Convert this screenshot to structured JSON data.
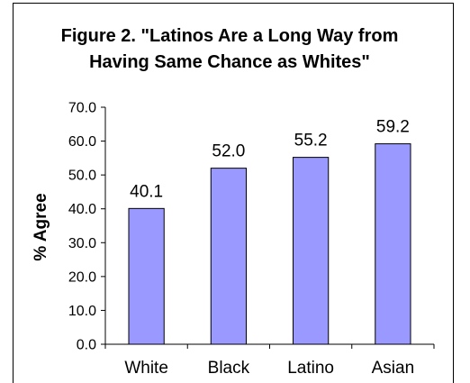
{
  "chart_data": {
    "type": "bar",
    "title": "Figure 2. \"Latinos Are a Long Way from Having Same Chance as Whites\"",
    "xlabel": "",
    "ylabel": "% Agree",
    "categories": [
      "White",
      "Black",
      "Latino",
      "Asian"
    ],
    "values": [
      40.1,
      52.0,
      55.2,
      59.2
    ],
    "data_labels": [
      "40.1",
      "52.0",
      "55.2",
      "59.2"
    ],
    "ylim": [
      0,
      70
    ],
    "yticks": [
      0,
      10,
      20,
      30,
      40,
      50,
      60,
      70
    ],
    "ytick_labels": [
      "0.0",
      "10.0",
      "20.0",
      "30.0",
      "40.0",
      "50.0",
      "60.0",
      "70.0"
    ],
    "grid": false,
    "legend": "none",
    "colors": {
      "bar_fill": "#9999FF",
      "bar_stroke": "#000000",
      "axis": "#000000"
    }
  }
}
